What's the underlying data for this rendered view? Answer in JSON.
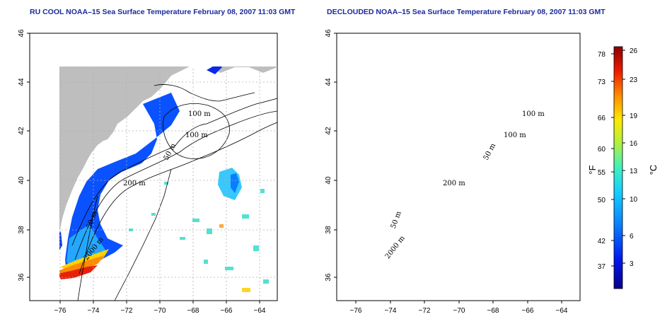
{
  "panels": [
    {
      "id": "left",
      "title": "RU COOL NOAA–15 Sea Surface Temperature February 08, 2007 11:03 GMT",
      "contour_labels": [
        "100 m",
        "100 m",
        "50 m",
        "200 m",
        "50 m",
        "2000 m"
      ]
    },
    {
      "id": "right",
      "title": "DECLOUDED NOAA–15 Sea Surface Temperature February 08, 2007 11:03 GMT",
      "contour_labels": [
        "100 m",
        "100 m",
        "50 m",
        "200 m",
        "50 m",
        "2000 m"
      ]
    }
  ],
  "axes": {
    "longitude_ticks": [
      "−76",
      "−74",
      "−72",
      "−70",
      "−68",
      "−66",
      "−64"
    ],
    "latitude_ticks": [
      "46",
      "44",
      "42",
      "40",
      "38",
      "36"
    ]
  },
  "colorbar": {
    "fahrenheit_ticks": [
      "78",
      "73",
      "66",
      "60",
      "55",
      "50",
      "42",
      "37"
    ],
    "celsius_ticks": [
      "26",
      "23",
      "19",
      "16",
      "13",
      "10",
      "6",
      "3"
    ],
    "fahrenheit_unit": "°F",
    "celsius_unit": "°C"
  },
  "colors": {
    "land": "#bebebe",
    "title": "#1a2a9c",
    "grid": "#b0b0b0"
  }
}
